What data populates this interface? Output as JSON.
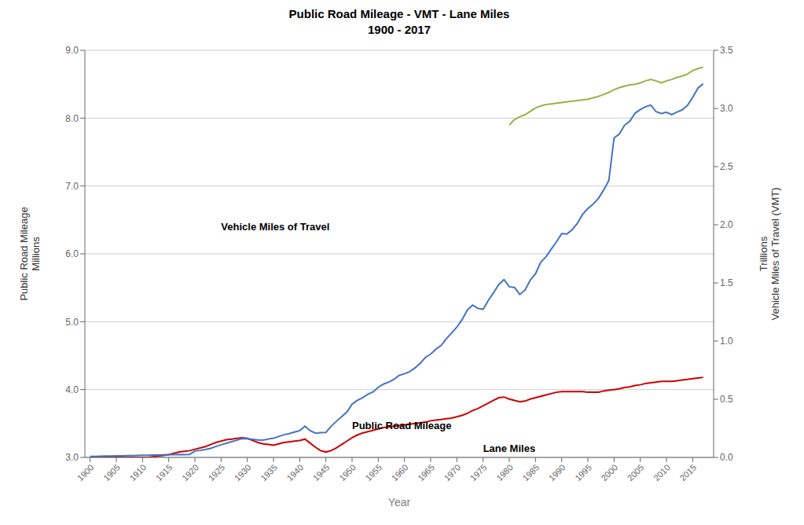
{
  "chart_data": {
    "type": "line",
    "title": "Public Road Mileage - VMT - Lane Miles",
    "subtitle": "1900 - 2017",
    "x_label": "Year",
    "y_label": "Public Road Mileage\nMillions",
    "y2_label": "Trillions\nVehicle Miles of Travel (VMT)",
    "xlim": [
      1899,
      2019
    ],
    "xticks": [
      1900,
      1905,
      1910,
      1915,
      1920,
      1925,
      1930,
      1935,
      1940,
      1945,
      1950,
      1955,
      1960,
      1965,
      1970,
      1975,
      1980,
      1985,
      1990,
      1995,
      2000,
      2005,
      2010,
      2015
    ],
    "ylim": [
      3.0,
      9.0
    ],
    "yticks": [
      {
        "value": 3.0,
        "label": "3.0"
      },
      {
        "value": 4.0,
        "label": "4.0"
      },
      {
        "value": 5.0,
        "label": "5.0"
      },
      {
        "value": 6.0,
        "label": "6.0"
      },
      {
        "value": 7.0,
        "label": "7.0"
      },
      {
        "value": 8.0,
        "label": "8.0"
      },
      {
        "value": 9.0,
        "label": "9.0"
      }
    ],
    "y2lim": [
      0.0,
      3.5
    ],
    "y2ticks": [
      {
        "value": 0.0,
        "label": "0.0"
      },
      0.5,
      {
        "value": 1.0,
        "label": "1.0"
      },
      1.5,
      {
        "value": 2.0,
        "label": "2.0"
      },
      2.5,
      {
        "value": 3.0,
        "label": "3.0"
      },
      3.5
    ],
    "grid": "y",
    "x": [
      1900,
      1901,
      1902,
      1903,
      1904,
      1905,
      1906,
      1907,
      1908,
      1909,
      1910,
      1911,
      1912,
      1913,
      1914,
      1915,
      1916,
      1917,
      1918,
      1919,
      1920,
      1921,
      1922,
      1923,
      1924,
      1925,
      1926,
      1927,
      1928,
      1929,
      1930,
      1931,
      1932,
      1933,
      1934,
      1935,
      1936,
      1937,
      1938,
      1939,
      1940,
      1941,
      1942,
      1943,
      1944,
      1945,
      1946,
      1947,
      1948,
      1949,
      1950,
      1951,
      1952,
      1953,
      1954,
      1955,
      1956,
      1957,
      1958,
      1959,
      1960,
      1961,
      1962,
      1963,
      1964,
      1965,
      1966,
      1967,
      1968,
      1969,
      1970,
      1971,
      1972,
      1973,
      1974,
      1975,
      1976,
      1977,
      1978,
      1979,
      1980,
      1981,
      1982,
      1983,
      1984,
      1985,
      1986,
      1987,
      1988,
      1989,
      1990,
      1991,
      1992,
      1993,
      1994,
      1995,
      1996,
      1997,
      1998,
      1999,
      2000,
      2001,
      2002,
      2003,
      2004,
      2005,
      2006,
      2007,
      2008,
      2009,
      2010,
      2011,
      2012,
      2013,
      2014,
      2015,
      2016,
      2017
    ],
    "series": [
      {
        "name": "Public Road Mileage",
        "color": "#cc0000",
        "axis": "y",
        "values": [
          3.0,
          3.0,
          3.0,
          3.0,
          3.0,
          3.0,
          3.0,
          3.0,
          3.0,
          3.0,
          3.0,
          3.0,
          3.01,
          3.02,
          3.03,
          3.04,
          3.06,
          3.08,
          3.09,
          3.1,
          3.12,
          3.14,
          3.16,
          3.19,
          3.22,
          3.24,
          3.26,
          3.27,
          3.28,
          3.29,
          3.28,
          3.25,
          3.22,
          3.2,
          3.19,
          3.18,
          3.2,
          3.22,
          3.23,
          3.24,
          3.25,
          3.27,
          3.21,
          3.15,
          3.1,
          3.08,
          3.1,
          3.14,
          3.19,
          3.24,
          3.29,
          3.33,
          3.36,
          3.38,
          3.4,
          3.42,
          3.44,
          3.45,
          3.46,
          3.47,
          3.48,
          3.49,
          3.5,
          3.51,
          3.52,
          3.54,
          3.55,
          3.56,
          3.57,
          3.58,
          3.6,
          3.62,
          3.65,
          3.69,
          3.72,
          3.76,
          3.8,
          3.84,
          3.88,
          3.89,
          3.86,
          3.84,
          3.82,
          3.83,
          3.86,
          3.88,
          3.9,
          3.92,
          3.94,
          3.96,
          3.97,
          3.97,
          3.97,
          3.97,
          3.97,
          3.96,
          3.96,
          3.96,
          3.98,
          3.99,
          4.0,
          4.01,
          4.03,
          4.04,
          4.06,
          4.07,
          4.09,
          4.1,
          4.11,
          4.12,
          4.12,
          4.12,
          4.13,
          4.14,
          4.15,
          4.16,
          4.17,
          4.18
        ]
      },
      {
        "name": "Vehicle Miles of Travel",
        "color": "#4472c4",
        "axis": "y2",
        "values": [
          0.008,
          0.009,
          0.01,
          0.011,
          0.012,
          0.013,
          0.014,
          0.015,
          0.016,
          0.017,
          0.018,
          0.019,
          0.02,
          0.021,
          0.022,
          0.023,
          0.024,
          0.025,
          0.024,
          0.026,
          0.055,
          0.06,
          0.067,
          0.078,
          0.094,
          0.109,
          0.122,
          0.135,
          0.148,
          0.162,
          0.16,
          0.155,
          0.15,
          0.148,
          0.158,
          0.165,
          0.18,
          0.195,
          0.205,
          0.218,
          0.23,
          0.268,
          0.23,
          0.208,
          0.213,
          0.215,
          0.268,
          0.31,
          0.35,
          0.39,
          0.458,
          0.491,
          0.513,
          0.543,
          0.563,
          0.603,
          0.63,
          0.648,
          0.671,
          0.706,
          0.719,
          0.737,
          0.769,
          0.809,
          0.86,
          0.888,
          0.931,
          0.962,
          1.021,
          1.07,
          1.12,
          1.185,
          1.267,
          1.309,
          1.281,
          1.273,
          1.35,
          1.416,
          1.487,
          1.529,
          1.467,
          1.461,
          1.401,
          1.438,
          1.524,
          1.578,
          1.678,
          1.724,
          1.79,
          1.853,
          1.924,
          1.92,
          1.958,
          2.012,
          2.09,
          2.14,
          2.177,
          2.226,
          2.298,
          2.38,
          2.747,
          2.78,
          2.856,
          2.89,
          2.959,
          2.99,
          3.014,
          3.03,
          2.973,
          2.956,
          2.967,
          2.946,
          2.969,
          2.988,
          3.026,
          3.095,
          3.174,
          3.212
        ]
      },
      {
        "name": "Lane Miles",
        "color": "#92b446",
        "axis": "y",
        "values": [
          null,
          null,
          null,
          null,
          null,
          null,
          null,
          null,
          null,
          null,
          null,
          null,
          null,
          null,
          null,
          null,
          null,
          null,
          null,
          null,
          null,
          null,
          null,
          null,
          null,
          null,
          null,
          null,
          null,
          null,
          null,
          null,
          null,
          null,
          null,
          null,
          null,
          null,
          null,
          null,
          null,
          null,
          null,
          null,
          null,
          null,
          null,
          null,
          null,
          null,
          null,
          null,
          null,
          null,
          null,
          null,
          null,
          null,
          null,
          null,
          null,
          null,
          null,
          null,
          null,
          null,
          null,
          null,
          null,
          null,
          null,
          null,
          null,
          null,
          null,
          null,
          null,
          null,
          null,
          null,
          7.9,
          7.98,
          8.02,
          8.05,
          8.1,
          8.15,
          8.18,
          8.2,
          8.21,
          8.22,
          8.23,
          8.24,
          8.25,
          8.26,
          8.27,
          8.28,
          8.3,
          8.32,
          8.35,
          8.38,
          8.42,
          8.45,
          8.47,
          8.49,
          8.5,
          8.52,
          8.55,
          8.57,
          8.55,
          8.52,
          8.55,
          8.57,
          8.6,
          8.62,
          8.65,
          8.7,
          8.73,
          8.75
        ]
      }
    ],
    "annotations": [
      {
        "text": "Vehicle Miles of Travel",
        "x": 1925,
        "y": 1.95,
        "axis": "y2"
      },
      {
        "text": "Lane Miles",
        "x": 1975,
        "y": 3.08,
        "axis": "y"
      },
      {
        "text": "Public Road Mileage",
        "x": 1950,
        "y": 3.42,
        "axis": "y"
      }
    ]
  }
}
